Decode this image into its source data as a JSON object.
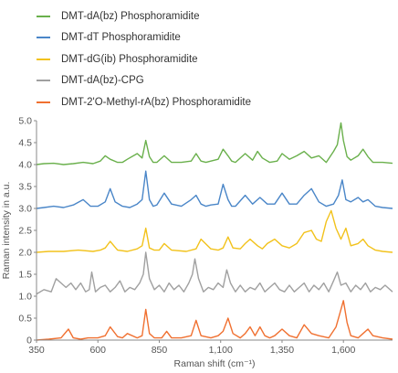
{
  "chart_data": {
    "type": "line",
    "title": "",
    "xlabel": "Raman shift (cm⁻¹)",
    "ylabel": "Raman intensity in a.u.",
    "xlim": [
      350,
      1800
    ],
    "ylim": [
      0,
      5.0
    ],
    "xticks": [
      350,
      600,
      850,
      1100,
      1350,
      1600
    ],
    "xtick_labels": [
      "350",
      "600",
      "850",
      "1,100",
      "1,350",
      "1,600"
    ],
    "yticks": [
      0,
      0.5,
      1.0,
      1.5,
      2.0,
      2.5,
      3.0,
      3.5,
      4.0,
      4.5,
      5.0
    ],
    "ytick_labels": [
      "0",
      "0.5",
      "1.0",
      "1.5",
      "2.0",
      "2.5",
      "3.0",
      "3.5",
      "4.0",
      "4.5",
      "5.0"
    ],
    "legend_position": "top",
    "series": [
      {
        "name": "DMT-dA(bz) Phosphoramidite",
        "color": "#6ab04c",
        "x": [
          350,
          380,
          420,
          460,
          500,
          540,
          580,
          610,
          630,
          650,
          680,
          700,
          720,
          760,
          780,
          795,
          810,
          825,
          840,
          870,
          900,
          940,
          980,
          1000,
          1020,
          1040,
          1060,
          1090,
          1110,
          1130,
          1145,
          1160,
          1200,
          1230,
          1250,
          1270,
          1300,
          1330,
          1350,
          1380,
          1410,
          1440,
          1470,
          1500,
          1530,
          1560,
          1575,
          1590,
          1600,
          1615,
          1630,
          1660,
          1680,
          1700,
          1720,
          1760,
          1800
        ],
        "values": [
          4.0,
          4.02,
          4.03,
          4.0,
          4.02,
          4.05,
          4.02,
          4.08,
          4.2,
          4.12,
          4.05,
          4.05,
          4.12,
          4.25,
          4.15,
          4.55,
          4.18,
          4.05,
          4.05,
          4.2,
          4.05,
          4.05,
          4.08,
          4.25,
          4.08,
          4.05,
          4.08,
          4.12,
          4.35,
          4.2,
          4.08,
          4.05,
          4.25,
          4.1,
          4.3,
          4.15,
          4.05,
          4.08,
          4.25,
          4.12,
          4.2,
          4.3,
          4.15,
          4.2,
          4.05,
          4.3,
          4.45,
          4.95,
          4.55,
          4.18,
          4.1,
          4.2,
          4.35,
          4.18,
          4.05,
          4.05,
          4.03
        ]
      },
      {
        "name": "DMT-dT Phosphoramidite",
        "color": "#4a86c8",
        "x": [
          350,
          380,
          420,
          460,
          500,
          540,
          570,
          600,
          630,
          650,
          670,
          700,
          730,
          760,
          780,
          795,
          810,
          825,
          840,
          870,
          900,
          940,
          980,
          1000,
          1020,
          1040,
          1060,
          1090,
          1110,
          1130,
          1145,
          1160,
          1200,
          1230,
          1260,
          1290,
          1320,
          1350,
          1380,
          1410,
          1440,
          1470,
          1500,
          1530,
          1560,
          1580,
          1595,
          1610,
          1630,
          1660,
          1680,
          1700,
          1730,
          1760,
          1800
        ],
        "values": [
          3.0,
          3.02,
          3.05,
          3.02,
          3.08,
          3.2,
          3.05,
          3.05,
          3.15,
          3.45,
          3.15,
          3.05,
          3.02,
          3.1,
          3.2,
          3.85,
          3.2,
          3.05,
          3.08,
          3.35,
          3.1,
          3.05,
          3.2,
          3.3,
          3.1,
          3.05,
          3.08,
          3.1,
          3.55,
          3.2,
          3.05,
          3.05,
          3.3,
          3.1,
          3.25,
          3.1,
          3.1,
          3.35,
          3.1,
          3.1,
          3.3,
          3.45,
          3.15,
          3.05,
          3.1,
          3.3,
          3.65,
          3.2,
          3.15,
          3.25,
          3.15,
          3.2,
          3.05,
          3.02,
          3.0
        ]
      },
      {
        "name": "DMT-dG(ib) Phosphoramidite",
        "color": "#f2c21b",
        "x": [
          350,
          400,
          460,
          520,
          580,
          610,
          630,
          650,
          680,
          720,
          760,
          780,
          795,
          810,
          830,
          850,
          870,
          900,
          960,
          1000,
          1020,
          1060,
          1090,
          1110,
          1130,
          1150,
          1180,
          1200,
          1220,
          1250,
          1270,
          1290,
          1320,
          1350,
          1380,
          1410,
          1440,
          1470,
          1490,
          1510,
          1530,
          1550,
          1570,
          1590,
          1610,
          1630,
          1660,
          1680,
          1700,
          1730,
          1760,
          1800
        ],
        "values": [
          2.0,
          2.02,
          2.02,
          2.05,
          2.02,
          2.05,
          2.1,
          2.25,
          2.05,
          2.02,
          2.08,
          2.15,
          2.55,
          2.1,
          2.05,
          2.05,
          2.2,
          2.05,
          2.02,
          2.08,
          2.3,
          2.08,
          2.05,
          2.1,
          2.35,
          2.1,
          2.08,
          2.2,
          2.3,
          2.15,
          2.08,
          2.2,
          2.3,
          2.15,
          2.1,
          2.2,
          2.45,
          2.5,
          2.3,
          2.25,
          2.7,
          2.95,
          2.55,
          2.3,
          2.55,
          2.15,
          2.2,
          2.3,
          2.15,
          2.05,
          2.02,
          2.0
        ]
      },
      {
        "name": "DMT-dA(bz)-CPG",
        "color": "#a0a0a0",
        "x": [
          350,
          380,
          410,
          430,
          450,
          470,
          490,
          510,
          530,
          550,
          565,
          575,
          590,
          610,
          630,
          650,
          670,
          690,
          710,
          730,
          750,
          770,
          785,
          795,
          810,
          830,
          850,
          870,
          890,
          910,
          930,
          950,
          970,
          985,
          995,
          1010,
          1030,
          1050,
          1070,
          1090,
          1110,
          1125,
          1140,
          1160,
          1180,
          1200,
          1220,
          1240,
          1260,
          1280,
          1300,
          1320,
          1340,
          1360,
          1380,
          1400,
          1420,
          1440,
          1460,
          1480,
          1500,
          1520,
          1540,
          1560,
          1575,
          1590,
          1610,
          1630,
          1650,
          1670,
          1690,
          1710,
          1730,
          1750,
          1770,
          1800
        ],
        "values": [
          1.05,
          1.15,
          1.1,
          1.4,
          1.3,
          1.2,
          1.3,
          1.15,
          1.3,
          1.1,
          1.15,
          1.55,
          1.1,
          1.2,
          1.25,
          1.1,
          1.2,
          1.35,
          1.1,
          1.2,
          1.15,
          1.3,
          1.5,
          2.0,
          1.4,
          1.15,
          1.25,
          1.1,
          1.3,
          1.15,
          1.25,
          1.1,
          1.3,
          1.5,
          1.85,
          1.4,
          1.1,
          1.2,
          1.15,
          1.3,
          1.2,
          1.6,
          1.3,
          1.1,
          1.25,
          1.1,
          1.2,
          1.15,
          1.3,
          1.1,
          1.2,
          1.3,
          1.15,
          1.1,
          1.25,
          1.1,
          1.2,
          1.3,
          1.1,
          1.25,
          1.15,
          1.3,
          1.1,
          1.35,
          1.55,
          1.25,
          1.3,
          1.1,
          1.25,
          1.15,
          1.3,
          1.1,
          1.2,
          1.15,
          1.25,
          1.1
        ]
      },
      {
        "name": "DMT-2'O-Methyl-rA(bz) Phosphoramidite",
        "color": "#f07030",
        "x": [
          350,
          400,
          450,
          480,
          500,
          530,
          560,
          600,
          630,
          650,
          680,
          700,
          720,
          760,
          780,
          795,
          810,
          830,
          860,
          880,
          900,
          940,
          980,
          1000,
          1020,
          1060,
          1090,
          1110,
          1130,
          1150,
          1180,
          1200,
          1220,
          1240,
          1260,
          1280,
          1300,
          1320,
          1350,
          1380,
          1410,
          1440,
          1470,
          1500,
          1540,
          1570,
          1585,
          1600,
          1615,
          1630,
          1660,
          1680,
          1700,
          1720,
          1760,
          1800
        ],
        "values": [
          0.0,
          0.02,
          0.05,
          0.25,
          0.05,
          0.02,
          0.05,
          0.05,
          0.1,
          0.3,
          0.08,
          0.05,
          0.15,
          0.05,
          0.1,
          0.7,
          0.15,
          0.05,
          0.05,
          0.2,
          0.05,
          0.05,
          0.1,
          0.45,
          0.1,
          0.05,
          0.1,
          0.2,
          0.5,
          0.15,
          0.05,
          0.15,
          0.3,
          0.1,
          0.3,
          0.1,
          0.05,
          0.1,
          0.25,
          0.1,
          0.05,
          0.35,
          0.15,
          0.1,
          0.05,
          0.3,
          0.6,
          0.9,
          0.4,
          0.1,
          0.05,
          0.15,
          0.25,
          0.1,
          0.05,
          0.02
        ]
      }
    ]
  }
}
